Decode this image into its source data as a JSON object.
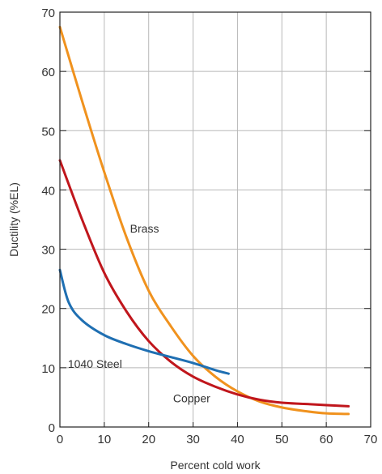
{
  "chart_data": {
    "type": "line",
    "title": "",
    "xlabel": "Percent cold work",
    "ylabel": "Ductility (%EL)",
    "xlim": [
      0,
      70
    ],
    "ylim": [
      0,
      70
    ],
    "x_ticks": [
      "0",
      "10",
      "20",
      "30",
      "40",
      "50",
      "60",
      "70"
    ],
    "y_ticks": [
      "0",
      "10",
      "20",
      "30",
      "40",
      "50",
      "60",
      "70"
    ],
    "grid": "on",
    "legend": "none",
    "series": [
      {
        "name": "Brass",
        "color": "#f0921e",
        "x": [
          0,
          5,
          10,
          15,
          20,
          25,
          30,
          35,
          40,
          45,
          50,
          55,
          60,
          65
        ],
        "y": [
          67.5,
          55,
          43,
          32,
          23,
          17,
          12,
          8.5,
          6,
          4.3,
          3.3,
          2.7,
          2.3,
          2.2
        ]
      },
      {
        "name": "Copper",
        "color": "#c0161c",
        "x": [
          0,
          5,
          10,
          15,
          20,
          25,
          30,
          35,
          40,
          45,
          50,
          55,
          60,
          65
        ],
        "y": [
          45,
          35,
          26,
          19.5,
          14.5,
          11,
          8.5,
          6.8,
          5.5,
          4.6,
          4.1,
          3.9,
          3.7,
          3.5
        ]
      },
      {
        "name": "1040 Steel",
        "color": "#1f6fb2",
        "x": [
          0,
          2,
          5,
          10,
          15,
          20,
          25,
          30,
          35,
          38
        ],
        "y": [
          26.5,
          21,
          18,
          15.5,
          14,
          12.8,
          11.8,
          10.8,
          9.6,
          9
        ]
      }
    ],
    "annotations": [
      "Brass",
      "Copper",
      "1040 Steel"
    ]
  }
}
